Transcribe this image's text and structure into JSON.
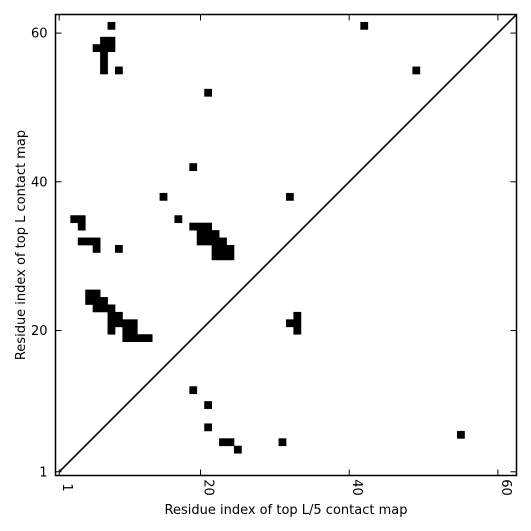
{
  "chart_data": {
    "type": "heatmap",
    "title": "",
    "xlabel": "Residue index of top L/5 contact map",
    "ylabel": "Residue index of top L contact map",
    "xlim": [
      0.5,
      62.5
    ],
    "ylim": [
      0.5,
      62.5
    ],
    "x_ticks": [
      1,
      20,
      40,
      60
    ],
    "y_ticks": [
      1,
      20,
      40,
      60
    ],
    "grid": false,
    "legend": "none",
    "colors": {
      "contact": "#000000",
      "diagonal": "#000000",
      "background": "#ffffff"
    },
    "diagonal_line": {
      "from": [
        1,
        1
      ],
      "to": [
        62.5,
        62.5
      ]
    },
    "upper_contacts": [
      [
        8,
        61
      ],
      [
        42,
        61
      ],
      [
        6,
        58
      ],
      [
        7,
        58
      ],
      [
        8,
        58
      ],
      [
        7,
        59
      ],
      [
        8,
        59
      ],
      [
        7,
        57
      ],
      [
        7,
        56
      ],
      [
        7,
        55
      ],
      [
        9,
        55
      ],
      [
        49,
        55
      ],
      [
        21,
        52
      ],
      [
        19,
        42
      ],
      [
        15,
        38
      ],
      [
        32,
        38
      ],
      [
        17,
        35
      ],
      [
        3,
        35
      ],
      [
        4,
        35
      ],
      [
        4,
        34
      ],
      [
        19,
        34
      ],
      [
        20,
        34
      ],
      [
        21,
        34
      ],
      [
        20,
        33
      ],
      [
        21,
        33
      ],
      [
        22,
        33
      ],
      [
        20,
        32
      ],
      [
        21,
        32
      ],
      [
        22,
        32
      ],
      [
        23,
        32
      ],
      [
        22,
        31
      ],
      [
        23,
        31
      ],
      [
        24,
        31
      ],
      [
        22,
        30
      ],
      [
        23,
        30
      ],
      [
        24,
        30
      ],
      [
        4,
        32
      ],
      [
        5,
        32
      ],
      [
        6,
        32
      ],
      [
        6,
        31
      ],
      [
        9,
        31
      ],
      [
        5,
        25
      ],
      [
        6,
        25
      ],
      [
        5,
        24
      ],
      [
        6,
        24
      ],
      [
        7,
        24
      ],
      [
        6,
        23
      ],
      [
        7,
        23
      ],
      [
        8,
        23
      ],
      [
        8,
        22
      ],
      [
        9,
        22
      ],
      [
        8,
        21
      ],
      [
        9,
        21
      ],
      [
        10,
        21
      ],
      [
        11,
        21
      ],
      [
        8,
        20
      ],
      [
        10,
        20
      ],
      [
        11,
        20
      ],
      [
        10,
        19
      ],
      [
        11,
        19
      ],
      [
        12,
        19
      ],
      [
        13,
        19
      ]
    ],
    "lower_contacts": [
      [
        33,
        22
      ],
      [
        32,
        21
      ],
      [
        33,
        21
      ],
      [
        33,
        20
      ],
      [
        19,
        12
      ],
      [
        21,
        10
      ],
      [
        21,
        7
      ],
      [
        31,
        5
      ],
      [
        23,
        5
      ],
      [
        24,
        5
      ],
      [
        25,
        4
      ],
      [
        55,
        6
      ]
    ]
  }
}
